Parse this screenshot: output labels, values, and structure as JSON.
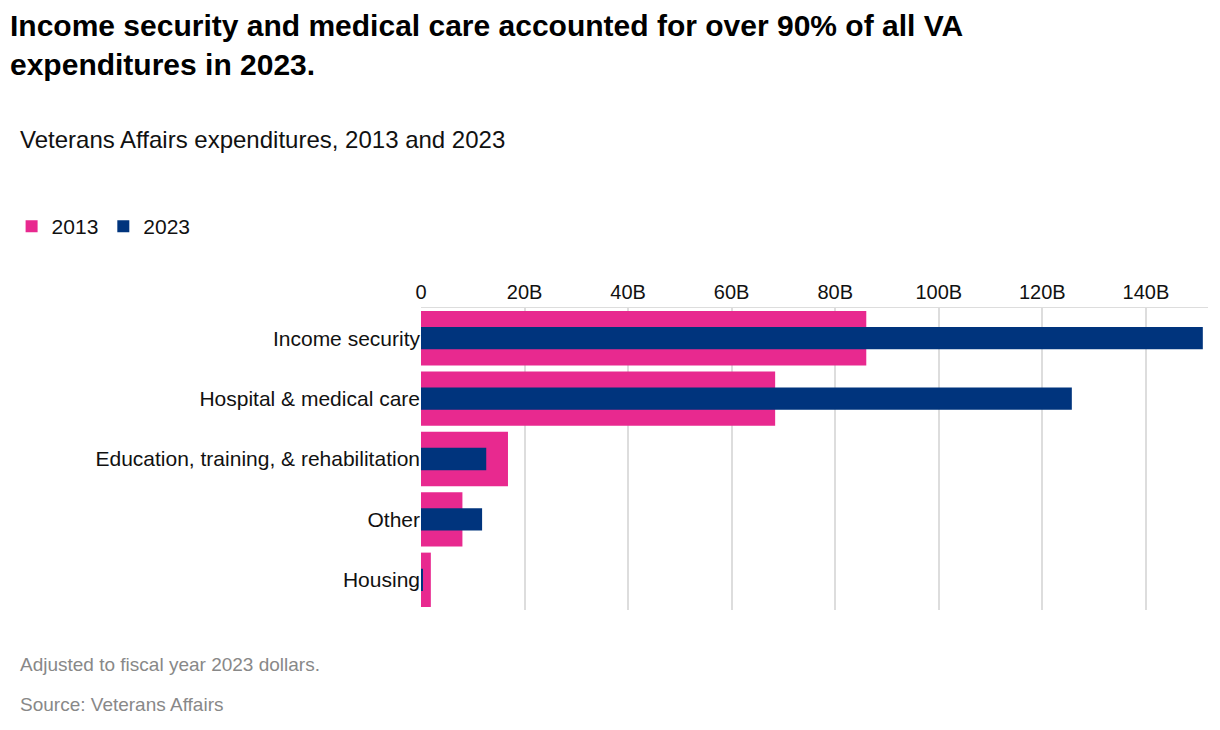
{
  "chart_data": {
    "type": "bar",
    "orientation": "horizontal",
    "title": "Income security and medical care accounted for over 90% of all VA expenditures in 2023.",
    "subtitle": "Veterans Affairs expenditures, 2013 and 2023",
    "annotations": [
      "Adjusted to fiscal year 2023 dollars.",
      "Source: Veterans Affairs"
    ],
    "categories": [
      "Income security",
      "Hospital & medical care",
      "Education, training, & rehabilitation",
      "Other",
      "Housing"
    ],
    "series": [
      {
        "name": "2013",
        "color": "#e8298f",
        "values": [
          86,
          68.4,
          16.8,
          8.0,
          1.9
        ]
      },
      {
        "name": "2023",
        "color": "#00347d",
        "values": [
          151,
          125.7,
          12.6,
          11.8,
          0.3
        ]
      }
    ],
    "xlim": [
      0,
      152
    ],
    "xticks": [
      0,
      {
        "value": 20,
        "label": "20B"
      },
      {
        "value": 40,
        "label": "40B"
      },
      {
        "value": 60,
        "label": "60B"
      },
      {
        "value": 80,
        "label": "80B"
      },
      {
        "value": 100,
        "label": "100B"
      },
      {
        "value": 120,
        "label": "120B"
      },
      {
        "value": 140,
        "label": "140B"
      }
    ],
    "grid": true,
    "legend": "top-left"
  }
}
